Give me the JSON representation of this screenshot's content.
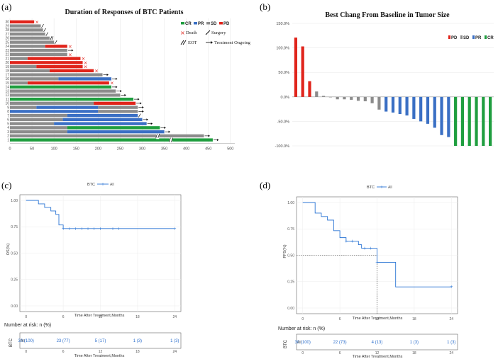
{
  "colors": {
    "CR": "#1f9e3f",
    "PR": "#3a6fc4",
    "SD": "#8c8c8c",
    "PD": "#e0241b",
    "km": "#2a74d4",
    "death": "#e0241b"
  },
  "panels": {
    "a": "(a)",
    "b": "(b)",
    "c": "(c)",
    "d": "(d)"
  },
  "chart_data": [
    {
      "id": "a",
      "type": "bar",
      "title": "Duration of Responses of BTC Patients",
      "xticks": [
        0,
        50,
        100,
        150,
        200,
        250,
        300,
        350,
        400,
        450,
        500
      ],
      "xlim": [
        0,
        510
      ],
      "legend": [
        {
          "key": "CR",
          "label": "CR",
          "color": "#1f9e3f"
        },
        {
          "key": "PR",
          "label": "PR",
          "color": "#3a6fc4"
        },
        {
          "key": "SD",
          "label": "SD",
          "color": "#8c8c8c"
        },
        {
          "key": "PD",
          "label": "PD",
          "color": "#e0241b"
        }
      ],
      "legend_markers": {
        "death": "Death",
        "surgery": "Surgery",
        "eot": "EOT",
        "ongoing": "Treatment Ongoing"
      },
      "patients": [
        {
          "id": "1",
          "segments": [
            {
              "r": "CR",
              "d": 460
            }
          ],
          "end": "ongoing",
          "break": 365
        },
        {
          "id": "2",
          "segments": [
            {
              "r": "SD",
              "d": 440
            }
          ],
          "end": "ongoing",
          "break": 335
        },
        {
          "id": "3",
          "segments": [
            {
              "r": "SD",
              "d": 130
            },
            {
              "r": "PR",
              "d": 220
            }
          ],
          "end": "ongoing"
        },
        {
          "id": "4",
          "segments": [
            {
              "r": "SD",
              "d": 130
            },
            {
              "r": "CR",
              "d": 210
            }
          ],
          "end": "ongoing"
        },
        {
          "id": "5",
          "segments": [
            {
              "r": "SD",
              "d": 100
            },
            {
              "r": "PR",
              "d": 210
            }
          ],
          "end": "ongoing"
        },
        {
          "id": "6",
          "segments": [
            {
              "r": "SD",
              "d": 120
            },
            {
              "r": "PR",
              "d": 180
            }
          ],
          "end": "ongoing"
        },
        {
          "id": "7",
          "segments": [
            {
              "r": "SD",
              "d": 130
            },
            {
              "r": "PR",
              "d": 160
            }
          ],
          "end": "surgery"
        },
        {
          "id": "8",
          "segments": [
            {
              "r": "PR",
              "d": 200
            },
            {
              "r": "SD",
              "d": 90
            }
          ],
          "end": "ongoing"
        },
        {
          "id": "9",
          "segments": [
            {
              "r": "SD",
              "d": 60
            },
            {
              "r": "PR",
              "d": 140
            },
            {
              "r": "SD",
              "d": 90
            }
          ],
          "end": "ongoing"
        },
        {
          "id": "10",
          "segments": [
            {
              "r": "SD",
              "d": 190
            },
            {
              "r": "PD",
              "d": 95
            }
          ],
          "end": "ongoing"
        },
        {
          "id": "11",
          "segments": [
            {
              "r": "CR",
              "d": 280
            }
          ],
          "end": "ongoing"
        },
        {
          "id": "12",
          "segments": [
            {
              "r": "SD",
              "d": 250
            }
          ],
          "end": "ongoing"
        },
        {
          "id": "13",
          "segments": [
            {
              "r": "SD",
              "d": 240
            }
          ],
          "end": "ongoing"
        },
        {
          "id": "14",
          "segments": [
            {
              "r": "CR",
              "d": 230
            }
          ],
          "end": "ongoing"
        },
        {
          "id": "15",
          "segments": [
            {
              "r": "SD",
              "d": 40
            },
            {
              "r": "PD",
              "d": 185
            }
          ],
          "end": "death"
        },
        {
          "id": "16",
          "segments": [
            {
              "r": "SD",
              "d": 110
            },
            {
              "r": "PR",
              "d": 120
            }
          ],
          "end": "ongoing"
        },
        {
          "id": "17",
          "segments": [
            {
              "r": "SD",
              "d": 210
            }
          ],
          "end": "ongoing"
        },
        {
          "id": "18",
          "segments": [
            {
              "r": "SD",
              "d": 90
            },
            {
              "r": "PD",
              "d": 100
            }
          ],
          "end": "death"
        },
        {
          "id": "19",
          "segments": [
            {
              "r": "SD",
              "d": 60
            },
            {
              "r": "PD",
              "d": 105
            }
          ],
          "end": "death"
        },
        {
          "id": "20",
          "segments": [
            {
              "r": "PD",
              "d": 165
            }
          ],
          "end": "death"
        },
        {
          "id": "21",
          "segments": [
            {
              "r": "SD",
              "d": 40
            },
            {
              "r": "PD",
              "d": 120
            }
          ],
          "end": "death"
        },
        {
          "id": "22",
          "segments": [
            {
              "r": "SD",
              "d": 130
            }
          ],
          "end": "death"
        },
        {
          "id": "23",
          "segments": [
            {
              "r": "SD",
              "d": 130
            }
          ],
          "end": "ongoing"
        },
        {
          "id": "24",
          "segments": [
            {
              "r": "SD",
              "d": 80
            },
            {
              "r": "PD",
              "d": 50
            }
          ],
          "end": "death"
        },
        {
          "id": "25",
          "segments": [
            {
              "r": "SD",
              "d": 100
            }
          ],
          "end": "surgery"
        },
        {
          "id": "26",
          "segments": [
            {
              "r": "SD",
              "d": 90
            }
          ],
          "end": "eot"
        },
        {
          "id": "27",
          "segments": [
            {
              "r": "SD",
              "d": 80
            }
          ],
          "end": "surgery"
        },
        {
          "id": "28",
          "segments": [
            {
              "r": "SD",
              "d": 75
            }
          ],
          "end": "surgery"
        },
        {
          "id": "29",
          "segments": [
            {
              "r": "SD",
              "d": 70
            }
          ],
          "end": "surgery"
        },
        {
          "id": "30",
          "segments": [
            {
              "r": "PD",
              "d": 55
            }
          ],
          "end": "death"
        }
      ]
    },
    {
      "id": "b",
      "type": "bar",
      "title": "Best Chang From Baseline in Tumor Size",
      "ylim": [
        -100,
        150
      ],
      "yticks": [
        150,
        100,
        50,
        0,
        -50,
        -100
      ],
      "yticklabels": [
        "150.0%",
        "100.0%",
        "50.0%",
        "0.0%",
        "-50.0%",
        "-100.0%"
      ],
      "legend": [
        {
          "key": "PD",
          "label": "PD",
          "color": "#e0241b"
        },
        {
          "key": "SD",
          "label": "SD",
          "color": "#8c8c8c"
        },
        {
          "key": "PR",
          "label": "PR",
          "color": "#3a6fc4"
        },
        {
          "key": "CR",
          "label": "CR",
          "color": "#1f9e3f"
        }
      ],
      "values": [
        121,
        103,
        32,
        11,
        2,
        -1,
        -5,
        -5,
        -6,
        -8,
        -9,
        -13,
        -26,
        -30,
        -32,
        -35,
        -38,
        -45,
        -50,
        -55,
        -63,
        -78,
        -82,
        -100,
        -100,
        -100,
        -100,
        -100,
        -100
      ],
      "responses": [
        "PD",
        "PD",
        "PD",
        "SD",
        "SD",
        "SD",
        "SD",
        "SD",
        "SD",
        "SD",
        "SD",
        "SD",
        "SD",
        "PR",
        "PR",
        "PR",
        "PR",
        "PR",
        "PR",
        "PR",
        "PR",
        "PR",
        "PR",
        "CR",
        "CR",
        "CR",
        "CR",
        "CR",
        "CR"
      ]
    },
    {
      "id": "c",
      "type": "line",
      "strata_title": "BTC",
      "strata_label": "All",
      "ylabel": "OS(%)",
      "xlabel": "Time After Treatment,Months",
      "xlim": [
        -1,
        25
      ],
      "ylim": [
        0,
        1
      ],
      "xticks": [
        0,
        6,
        12,
        18,
        24
      ],
      "yticks": [
        0,
        0.25,
        0.5,
        0.75,
        1.0
      ],
      "yticklabels": [
        "0.00",
        "0.25",
        "0.50",
        "0.75",
        "1.00"
      ],
      "steps": [
        [
          0,
          1.0
        ],
        [
          2,
          0.967
        ],
        [
          3,
          0.933
        ],
        [
          4,
          0.9
        ],
        [
          4.8,
          0.867
        ],
        [
          5.3,
          0.767
        ],
        [
          6,
          0.733
        ],
        [
          24,
          0.733
        ]
      ],
      "censors": [
        6,
        7,
        8,
        9,
        10,
        11,
        12,
        14,
        15,
        24
      ],
      "risk_title": "Number at risk: n (%)",
      "risk_ylabel": "BTC",
      "risk_strata": "All",
      "risk_times": [
        0,
        6,
        12,
        18,
        24
      ],
      "risk_values": [
        "30 (100)",
        "23 (77)",
        "5 (17)",
        "1 (3)",
        "1 (3)"
      ]
    },
    {
      "id": "d",
      "type": "line",
      "strata_title": "BTC",
      "strata_label": "All",
      "ylabel": "PFS(%)",
      "xlabel": "Time After Treatment,Months",
      "xlim": [
        -1,
        25
      ],
      "ylim": [
        0,
        1
      ],
      "xticks": [
        0,
        6,
        12,
        18,
        24
      ],
      "yticks": [
        0,
        0.25,
        0.5,
        0.75,
        1.0
      ],
      "yticklabels": [
        "0.00",
        "0.25",
        "0.50",
        "0.75",
        "1.00"
      ],
      "steps": [
        [
          0,
          1.0
        ],
        [
          2,
          0.9
        ],
        [
          3,
          0.867
        ],
        [
          4,
          0.833
        ],
        [
          5,
          0.733
        ],
        [
          6,
          0.667
        ],
        [
          7,
          0.633
        ],
        [
          9,
          0.6
        ],
        [
          9.5,
          0.567
        ],
        [
          12,
          0.433
        ],
        [
          15,
          0.2
        ],
        [
          24,
          0.2
        ]
      ],
      "censors": [
        7,
        8,
        10,
        11,
        12,
        24
      ],
      "median_line": {
        "y": 0.5,
        "x": 12
      },
      "risk_title": "Number at risk: n (%)",
      "risk_ylabel": "BTC",
      "risk_strata": "All",
      "risk_times": [
        0,
        6,
        12,
        18,
        24
      ],
      "risk_values": [
        "30 (100)",
        "22 (73)",
        "4 (13)",
        "1 (3)",
        "1 (3)"
      ]
    }
  ]
}
